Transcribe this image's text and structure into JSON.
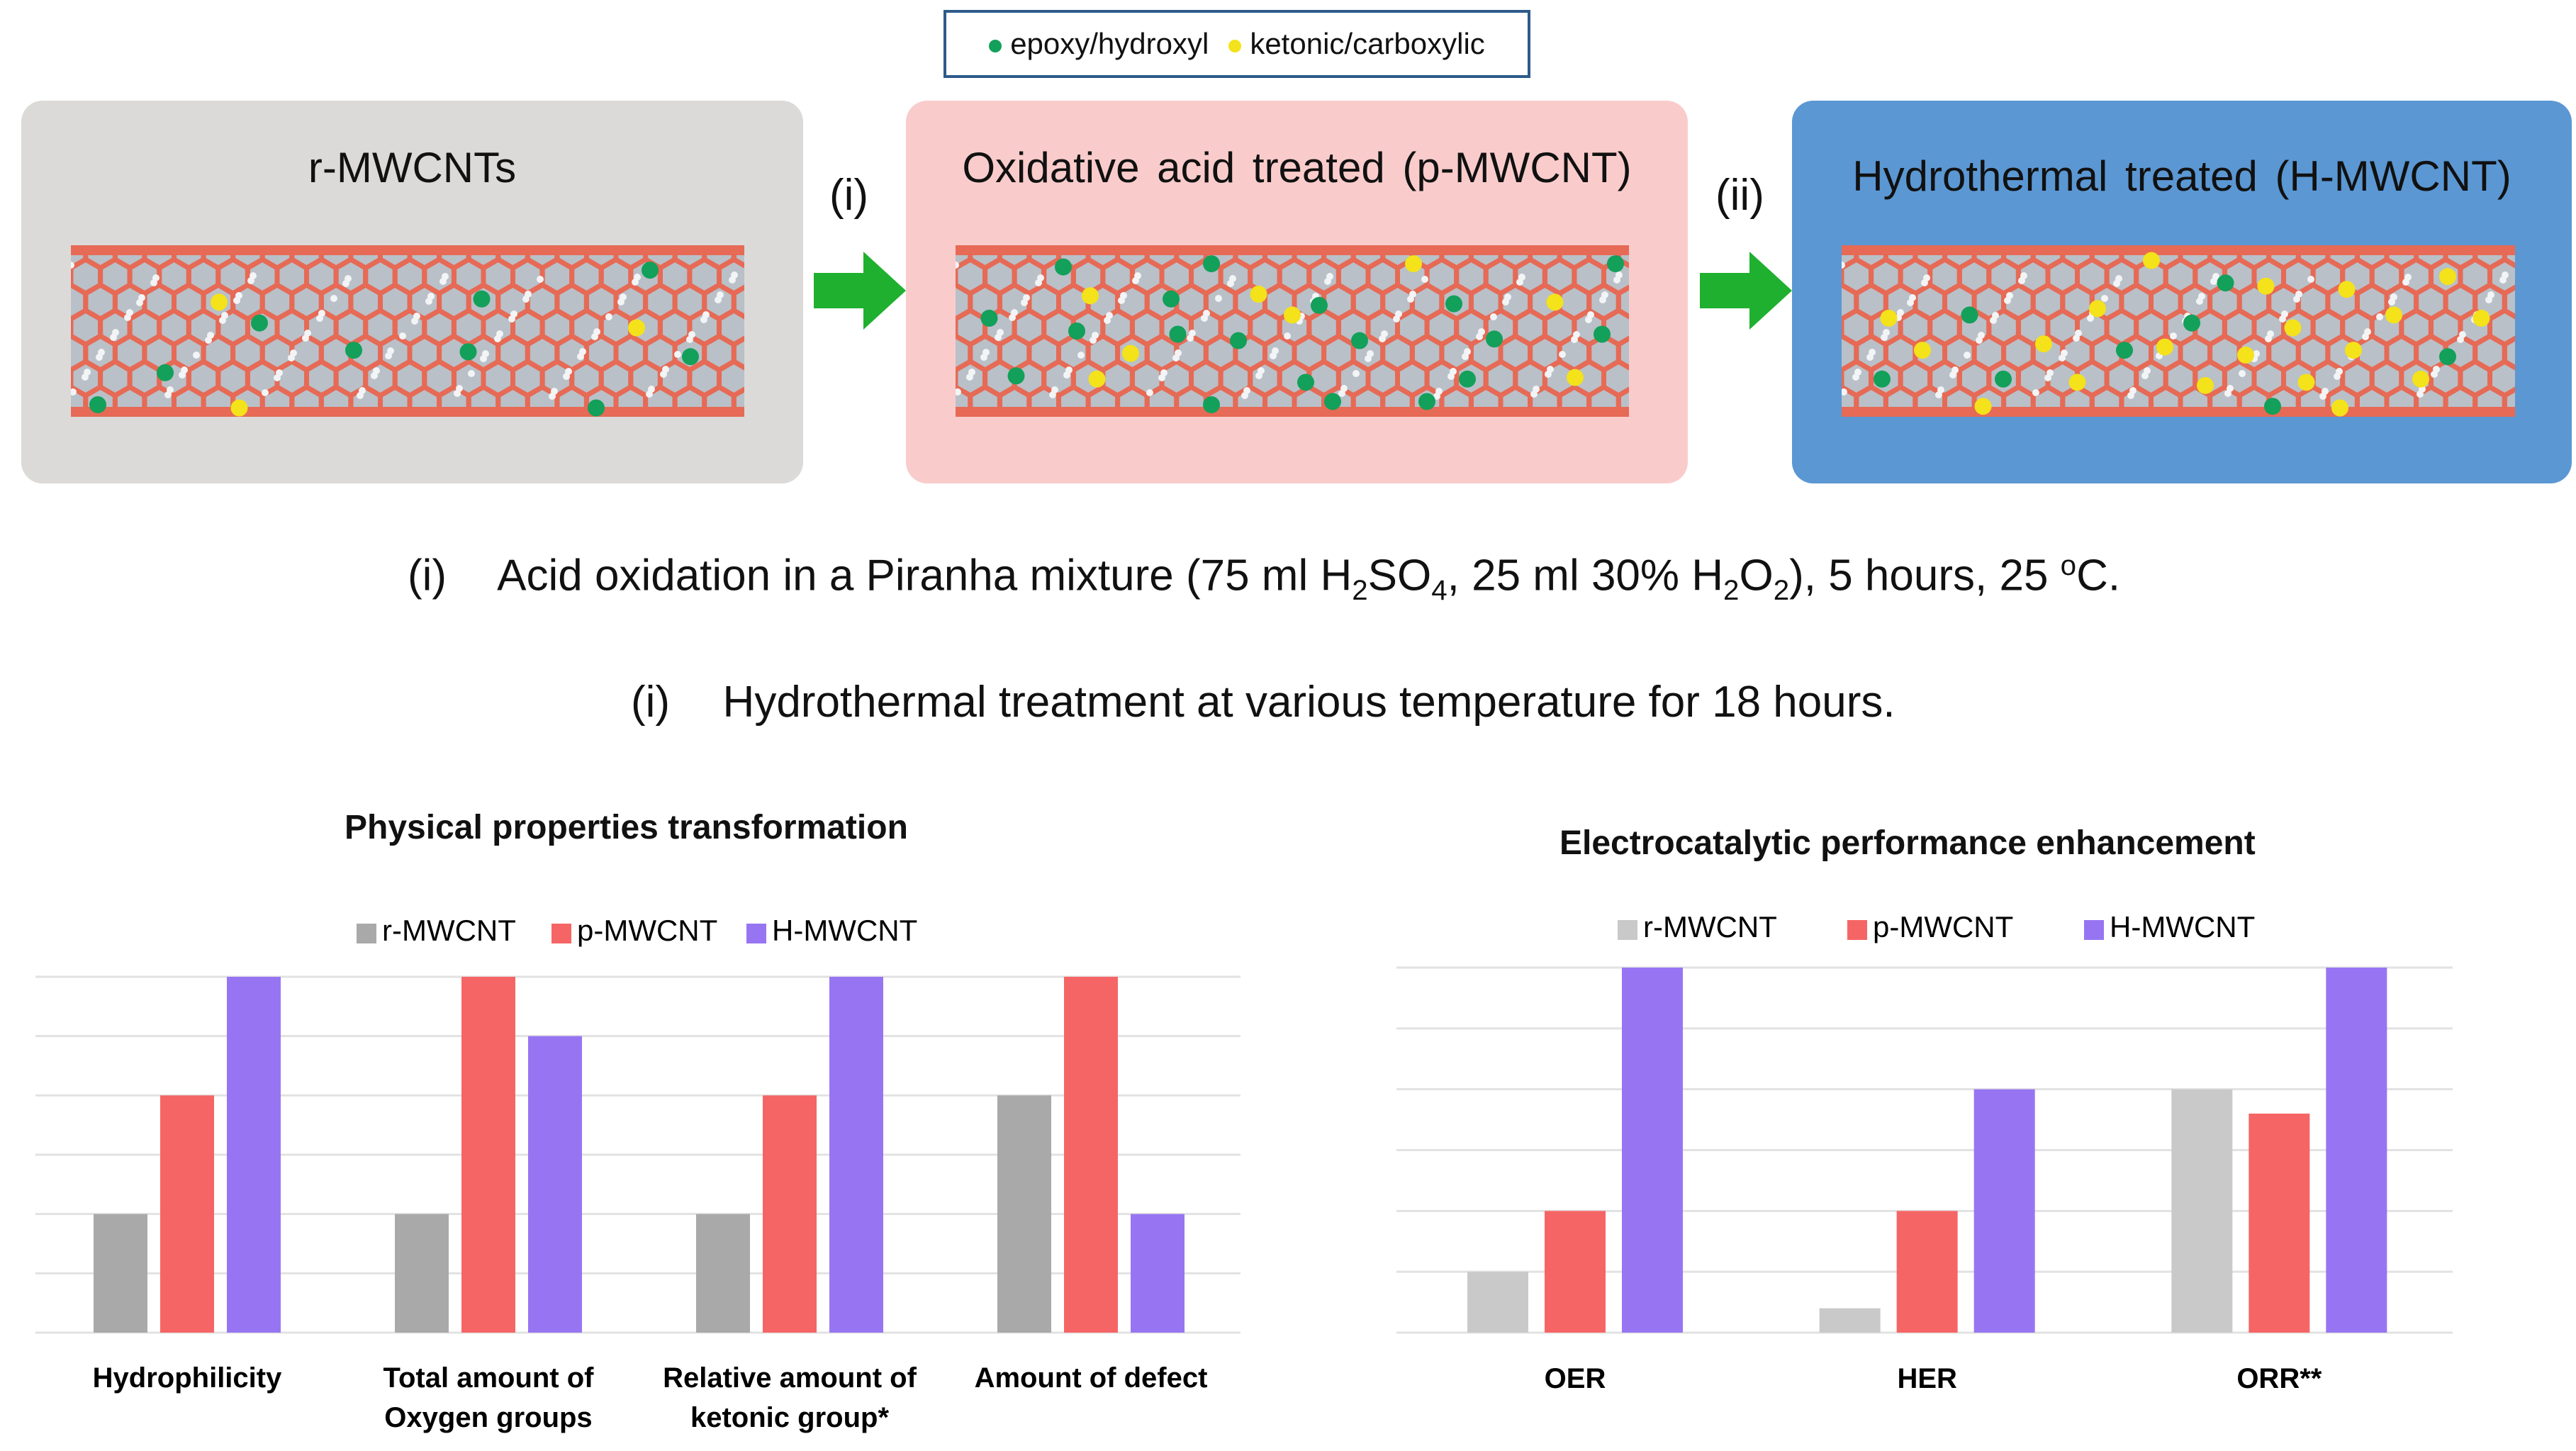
{
  "legend": {
    "items": [
      {
        "label": "epoxy/hydroxyl",
        "color": "#12a05a"
      },
      {
        "label": "ketonic/carboxylic",
        "color": "#f4e21a"
      }
    ]
  },
  "panels": [
    {
      "title": "r-MWCNTs",
      "bg": "#dcdad8"
    },
    {
      "title": "Oxidative acid treated (p-MWCNT)",
      "bg": "#f9cccb"
    },
    {
      "title": "Hydrothermal treated (H-MWCNT)",
      "bg": "#5b97d3"
    }
  ],
  "steps": [
    "(i)",
    "(ii)"
  ],
  "notes": {
    "step1": {
      "label": "(i)",
      "text_a": "Acid oxidation in a Piranha mixture (75 ml H",
      "sub1": "2",
      "text_b": "SO",
      "sub2": "4",
      "text_c": ", 25 ml 30% H",
      "sub3": "2",
      "text_d": "O",
      "sub4": "2",
      "text_e": "), 5 hours, 25 ",
      "sup1": "o",
      "text_f": "C."
    },
    "step2": {
      "label": "(i)",
      "text": "Hydrothermal treatment at various temperature for 18 hours."
    }
  },
  "colors": {
    "r": "#a9a9a9",
    "p": "#f66565",
    "h": "#9775f2",
    "r_light": "#c9c9c9",
    "arrow": "#1fb02f",
    "tube": "#e66a55"
  },
  "chart_data": [
    {
      "type": "bar",
      "title": "Physical properties transformation",
      "categories": [
        "Hydrophilicity",
        "Total amount of Oxygen groups",
        "Relative amount of ketonic group*",
        "Amount of defect"
      ],
      "category_lines": [
        [
          "Hydrophilicity"
        ],
        [
          "Total amount of",
          "Oxygen groups"
        ],
        [
          "Relative amount of",
          "ketonic group*"
        ],
        [
          "Amount of defect"
        ]
      ],
      "series": [
        {
          "name": "r-MWCNT",
          "values": [
            1,
            1,
            1,
            2
          ]
        },
        {
          "name": "p-MWCNT",
          "values": [
            2,
            3,
            2,
            3
          ]
        },
        {
          "name": "H-MWCNT",
          "values": [
            3,
            2.5,
            3,
            1
          ]
        }
      ],
      "ylim": [
        0,
        3
      ],
      "grid": true,
      "legend": "top"
    },
    {
      "type": "bar",
      "title": "Electrocatalytic performance enhancement",
      "categories": [
        "OER",
        "HER",
        "ORR**"
      ],
      "category_lines": [
        [
          "OER"
        ],
        [
          "HER"
        ],
        [
          "ORR**"
        ]
      ],
      "series": [
        {
          "name": "r-MWCNT",
          "values": [
            0.5,
            0.2,
            2.0
          ]
        },
        {
          "name": "p-MWCNT",
          "values": [
            1.0,
            1.0,
            1.8
          ]
        },
        {
          "name": "H-MWCNT",
          "values": [
            3.0,
            2.0,
            3.0
          ]
        }
      ],
      "ylim": [
        0,
        3
      ],
      "grid": true,
      "legend": "top"
    }
  ]
}
